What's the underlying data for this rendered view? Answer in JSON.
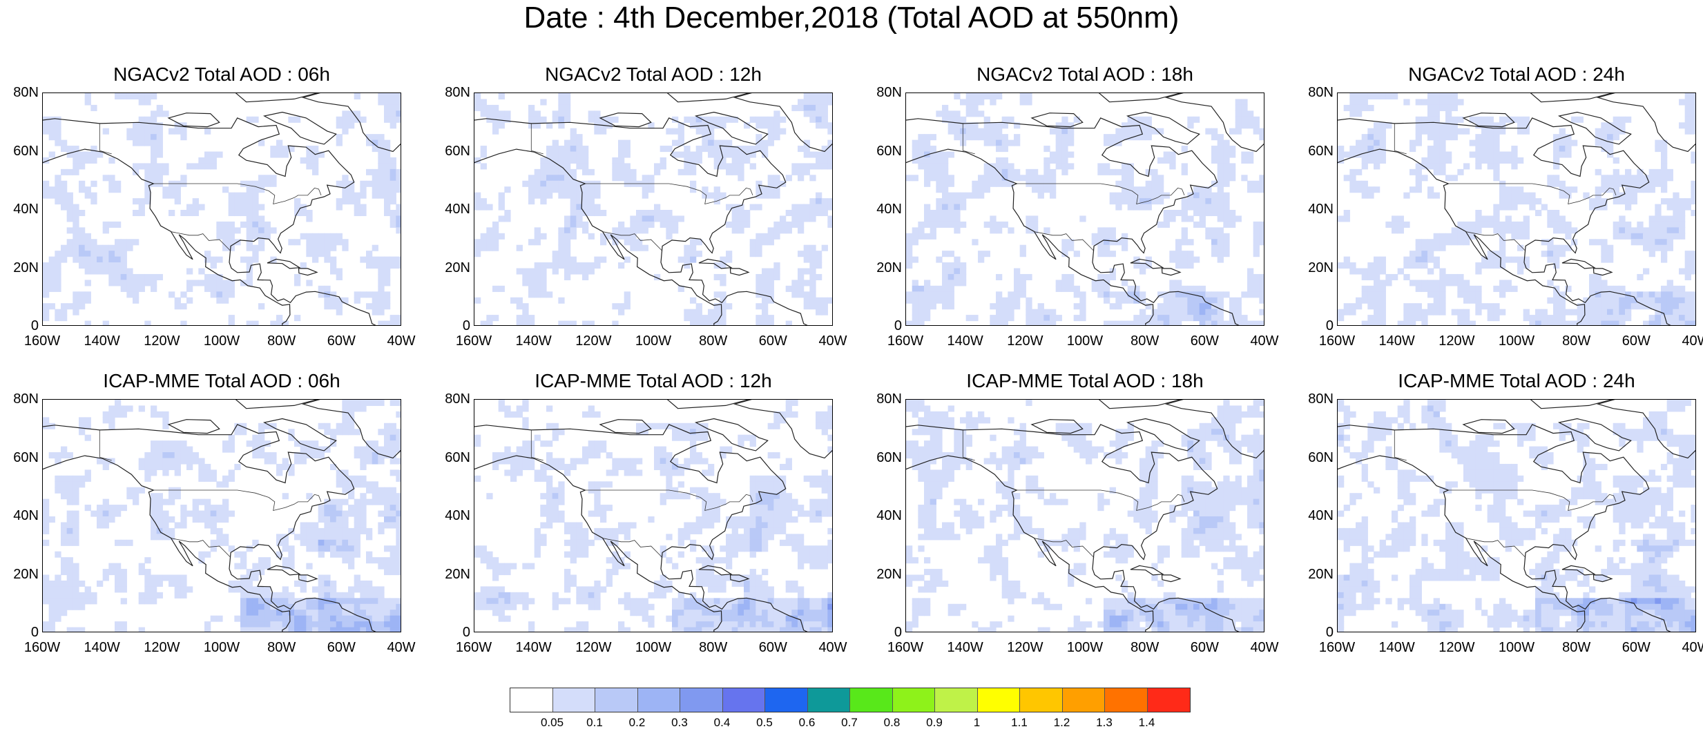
{
  "title": "Date : 4th December,2018 (Total AOD at 550nm)",
  "panels": [
    {
      "title": "NGACv2 Total AOD : 06h",
      "intensity": 0
    },
    {
      "title": "NGACv2 Total AOD : 12h",
      "intensity": 0
    },
    {
      "title": "NGACv2 Total AOD : 18h",
      "intensity": 1
    },
    {
      "title": "NGACv2 Total AOD : 24h",
      "intensity": 1
    },
    {
      "title": "ICAP-MME Total AOD : 06h",
      "intensity": 2
    },
    {
      "title": "ICAP-MME Total AOD : 12h",
      "intensity": 2
    },
    {
      "title": "ICAP-MME Total AOD : 18h",
      "intensity": 2
    },
    {
      "title": "ICAP-MME Total AOD : 24h",
      "intensity": 2
    }
  ],
  "lat_labels": [
    "80N",
    "60N",
    "40N",
    "20N",
    "0"
  ],
  "lon_labels": [
    "160W",
    "140W",
    "120W",
    "100W",
    "80W",
    "60W",
    "40W"
  ],
  "colorbar": {
    "colors": [
      "#ffffff",
      "#d4ddfa",
      "#b9c9f7",
      "#9db4f5",
      "#8099f0",
      "#6674ee",
      "#1e66f0",
      "#0e9999",
      "#58e81a",
      "#8ef21a",
      "#bff248",
      "#ffff00",
      "#ffc600",
      "#ff9f00",
      "#ff7200",
      "#ff2a18"
    ],
    "labels": [
      "0.05",
      "0.1",
      "0.2",
      "0.3",
      "0.4",
      "0.5",
      "0.6",
      "0.7",
      "0.8",
      "0.9",
      "1",
      "1.1",
      "1.2",
      "1.3",
      "1.4"
    ]
  }
}
